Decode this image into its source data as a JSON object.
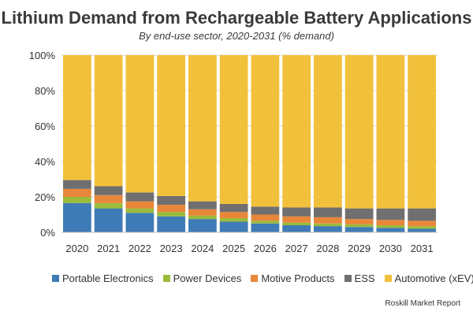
{
  "title": "Lithium Demand from Rechargeable Battery Applications",
  "subtitle": "By end-use sector, 2020-2031 (% demand)",
  "source": "Roskill Market Report",
  "chart_data": {
    "type": "bar",
    "stacked": true,
    "categories": [
      "2020",
      "2021",
      "2022",
      "2023",
      "2024",
      "2025",
      "2026",
      "2027",
      "2028",
      "2029",
      "2030",
      "2031"
    ],
    "y_ticks": [
      "0%",
      "20%",
      "40%",
      "60%",
      "80%",
      "100%"
    ],
    "ylim": [
      0,
      100
    ],
    "grid": true,
    "legend_position": "bottom",
    "series": [
      {
        "name": "Portable Electronics",
        "color": "#3f7bb6",
        "values": [
          16.5,
          13.5,
          11,
          9,
          7.5,
          6,
          5,
          4,
          3.5,
          3,
          2.5,
          2
        ]
      },
      {
        "name": "Power Devices",
        "color": "#9bbb3b",
        "values": [
          3.5,
          3,
          2.5,
          2.5,
          2,
          2,
          1.5,
          1.5,
          1.5,
          1.5,
          1.5,
          1.5
        ]
      },
      {
        "name": "Motive Products",
        "color": "#e8873a",
        "values": [
          4.5,
          4.5,
          4,
          4,
          3.5,
          3.5,
          3.5,
          3.5,
          3.5,
          3,
          3,
          3
        ]
      },
      {
        "name": "ESS",
        "color": "#6f6f6f",
        "values": [
          5,
          5,
          5,
          5,
          4.5,
          4.5,
          4.5,
          5,
          5.5,
          6,
          6.5,
          7
        ]
      },
      {
        "name": "Automotive (xEV)",
        "color": "#f2c13c",
        "values": [
          70.5,
          74,
          77.5,
          79.5,
          82.5,
          84,
          85.5,
          86,
          86,
          86.5,
          86.5,
          86.5
        ]
      }
    ]
  }
}
